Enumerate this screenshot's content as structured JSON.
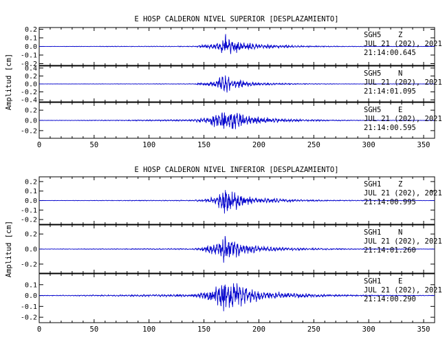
{
  "colors": {
    "trace": "#0000cc",
    "axes": "#000000",
    "background": "#ffffff"
  },
  "chart_data": [
    {
      "type": "line",
      "title": "E HOSP CALDERON NIVEL SUPERIOR [DESPLAZAMIENTO]",
      "ylabel": "Amplitud [cm]",
      "xlim": [
        0,
        360
      ],
      "x_ticks": [
        "0",
        "50",
        "100",
        "150",
        "200",
        "250",
        "300",
        "350"
      ],
      "channels": [
        {
          "name": "SGH5 Z",
          "station": "SGH5",
          "component": "Z",
          "date": "JUL 21 (202), 2021",
          "time": "21:14:00.645",
          "ylim": [
            -0.22,
            0.22
          ],
          "y_ticks": [
            "0.2",
            "0.1",
            "0.0",
            "-0.1",
            "-0.2"
          ],
          "envelope": [
            [
              0,
              0.002
            ],
            [
              140,
              0.006
            ],
            [
              148,
              0.02
            ],
            [
              155,
              0.03
            ],
            [
              162,
              0.05
            ],
            [
              167,
              0.12
            ],
            [
              169,
              0.2
            ],
            [
              171,
              0.14
            ],
            [
              175,
              0.09
            ],
            [
              180,
              0.08
            ],
            [
              190,
              0.05
            ],
            [
              200,
              0.04
            ],
            [
              215,
              0.025
            ],
            [
              240,
              0.012
            ],
            [
              270,
              0.006
            ],
            [
              300,
              0.003
            ],
            [
              360,
              0.002
            ]
          ]
        },
        {
          "name": "SGH5 N",
          "station": "SGH5",
          "component": "N",
          "date": "JUL 21 (202), 2021",
          "time": "21:14:01.095",
          "ylim": [
            -0.45,
            0.45
          ],
          "y_ticks": [
            "0.4",
            "0.2",
            "0.0",
            "-0.2",
            "-0.4"
          ],
          "envelope": [
            [
              0,
              0.003
            ],
            [
              140,
              0.01
            ],
            [
              150,
              0.05
            ],
            [
              160,
              0.1
            ],
            [
              166,
              0.22
            ],
            [
              169,
              0.38
            ],
            [
              172,
              0.26
            ],
            [
              177,
              0.14
            ],
            [
              182,
              0.15
            ],
            [
              190,
              0.08
            ],
            [
              200,
              0.05
            ],
            [
              215,
              0.03
            ],
            [
              240,
              0.015
            ],
            [
              280,
              0.006
            ],
            [
              360,
              0.003
            ]
          ]
        },
        {
          "name": "SGH5 E",
          "station": "SGH5",
          "component": "E",
          "date": "JUL 21 (202), 2021",
          "time": "21:14:00.595",
          "ylim": [
            -0.35,
            0.35
          ],
          "y_ticks": [
            "0.2",
            "0.0",
            "-0.2"
          ],
          "envelope": [
            [
              0,
              0.003
            ],
            [
              140,
              0.02
            ],
            [
              150,
              0.07
            ],
            [
              158,
              0.14
            ],
            [
              165,
              0.22
            ],
            [
              170,
              0.25
            ],
            [
              178,
              0.22
            ],
            [
              185,
              0.17
            ],
            [
              195,
              0.09
            ],
            [
              205,
              0.07
            ],
            [
              220,
              0.04
            ],
            [
              250,
              0.02
            ],
            [
              290,
              0.008
            ],
            [
              360,
              0.004
            ]
          ]
        }
      ]
    },
    {
      "type": "line",
      "title": "E HOSP CALDERON NIVEL INFERIOR [DESPLAZAMIENTO]",
      "ylabel": "Amplitud [cm]",
      "xlim": [
        0,
        360
      ],
      "x_ticks": [
        "0",
        "50",
        "100",
        "150",
        "200",
        "250",
        "300",
        "350"
      ],
      "channels": [
        {
          "name": "SGH1 Z",
          "station": "SGH1",
          "component": "Z",
          "date": "JUL 21 (202), 2021",
          "time": "21:14:00.995",
          "ylim": [
            -0.25,
            0.25
          ],
          "y_ticks": [
            "0.2",
            "0.1",
            "0.0",
            "-0.1",
            "-0.2"
          ],
          "envelope": [
            [
              0,
              0.002
            ],
            [
              140,
              0.006
            ],
            [
              150,
              0.02
            ],
            [
              160,
              0.05
            ],
            [
              166,
              0.12
            ],
            [
              169,
              0.24
            ],
            [
              172,
              0.14
            ],
            [
              178,
              0.12
            ],
            [
              185,
              0.07
            ],
            [
              195,
              0.045
            ],
            [
              210,
              0.03
            ],
            [
              240,
              0.012
            ],
            [
              280,
              0.006
            ],
            [
              360,
              0.002
            ]
          ]
        },
        {
          "name": "SGH1 N",
          "station": "SGH1",
          "component": "N",
          "date": "JUL 21 (202), 2021",
          "time": "21:14:01.260",
          "ylim": [
            -0.32,
            0.32
          ],
          "y_ticks": [
            "0.2",
            "0.0",
            "-0.2"
          ],
          "envelope": [
            [
              0,
              0.003
            ],
            [
              140,
              0.01
            ],
            [
              150,
              0.04
            ],
            [
              160,
              0.1
            ],
            [
              166,
              0.2
            ],
            [
              169,
              0.3
            ],
            [
              172,
              0.2
            ],
            [
              178,
              0.14
            ],
            [
              185,
              0.09
            ],
            [
              195,
              0.06
            ],
            [
              210,
              0.04
            ],
            [
              240,
              0.02
            ],
            [
              280,
              0.008
            ],
            [
              360,
              0.003
            ]
          ]
        },
        {
          "name": "SGH1 E",
          "station": "SGH1",
          "component": "E",
          "date": "JUL 21 (202), 2021",
          "time": "21:14:00.290",
          "ylim": [
            -0.25,
            0.2
          ],
          "y_ticks": [
            "0.1",
            "0.0",
            "-0.1",
            "-0.2"
          ],
          "envelope": [
            [
              0,
              0.003
            ],
            [
              140,
              0.015
            ],
            [
              150,
              0.05
            ],
            [
              160,
              0.1
            ],
            [
              166,
              0.15
            ],
            [
              170,
              0.24
            ],
            [
              175,
              0.16
            ],
            [
              185,
              0.12
            ],
            [
              195,
              0.08
            ],
            [
              210,
              0.05
            ],
            [
              230,
              0.03
            ],
            [
              260,
              0.015
            ],
            [
              300,
              0.006
            ],
            [
              360,
              0.003
            ]
          ]
        }
      ]
    }
  ]
}
